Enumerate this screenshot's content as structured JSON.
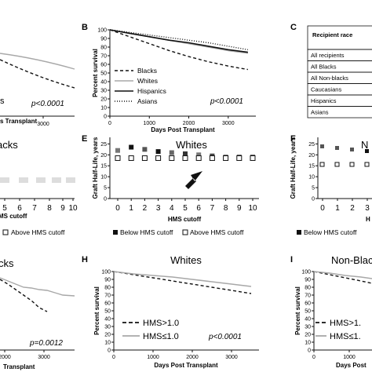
{
  "panels": {
    "A": {
      "ylabel": "",
      "xlabel": "",
      "xticks": [
        "",
        "3000"
      ],
      "pvalue": "p<0.0001",
      "xlabel_visible": "s Transplant",
      "legend_fragment": "s"
    },
    "B": {
      "label": "B",
      "ylabel": "Percent survival",
      "xlabel": "Days Post Transplant",
      "pvalue": "p<0.0001",
      "yticks": [
        "0",
        "10",
        "20",
        "30",
        "40",
        "50",
        "60",
        "70",
        "80",
        "90",
        "100"
      ],
      "xticks": [
        "0",
        "1000",
        "2000",
        "3000"
      ]
    },
    "C": {
      "label": "C",
      "table_header": "Recipient race",
      "rows": [
        "All recipients",
        "All Blacks",
        "All Non-blacks",
        "Caucasians",
        "Hispanics",
        "Asians"
      ]
    },
    "D": {
      "title_fragment": "acks",
      "xticks": [
        "5",
        "6",
        "7",
        "8",
        "9",
        "10"
      ],
      "xlabel_fragment": "MS cutoff",
      "legend_fragment": "Above HMS cutoff"
    },
    "E": {
      "label": "E",
      "title": "Whites",
      "ylabel": "Graft Half-Life, years",
      "xlabel": "HMS cutoff",
      "yticks": [
        "0",
        "5",
        "10",
        "15",
        "20",
        "25"
      ],
      "xticks": [
        "0",
        "1",
        "2",
        "3",
        "4",
        "5",
        "6",
        "7",
        "8",
        "9",
        "10"
      ]
    },
    "F": {
      "label": "F",
      "title_fragment": "N",
      "ylabel": "Graft Half-Life, years",
      "yticks": [
        "0",
        "5",
        "10",
        "15",
        "20",
        "25"
      ],
      "xticks": [
        "0",
        "1",
        "2",
        "3"
      ],
      "xlabel_fragment": "H"
    },
    "G": {
      "title_fragment": "cks",
      "pvalue": "p=0.0012",
      "xticks": [
        "2000",
        "3000"
      ],
      "xlabel_fragment": "Transplant"
    },
    "H": {
      "label": "H",
      "title": "Whites",
      "ylabel": "Percent survival",
      "xlabel": "Days Post Transplant",
      "pvalue": "p<0.0001",
      "yticks": [
        "0",
        "10",
        "20",
        "30",
        "40",
        "50",
        "60",
        "70",
        "80",
        "90",
        "100"
      ],
      "xticks": [
        "0",
        "1000",
        "2000",
        "3000"
      ]
    },
    "I": {
      "label": "I",
      "title_fragment": "Non-Blac",
      "ylabel": "Percent survival",
      "xlabel_fragment": "Days Post",
      "yticks": [
        "0",
        "10",
        "20",
        "30",
        "40",
        "50",
        "60",
        "70",
        "80",
        "90",
        "100"
      ],
      "xticks": [
        "0",
        "1000"
      ]
    }
  },
  "legend_hms": {
    "below": "Below HMS cutoff",
    "above": "Above HMS cutoff",
    "below_short": "Below HMS cutoff"
  },
  "legend_survival": {
    "gt": "HMS>1.0",
    "le": "HMS≤1.0",
    "gt_short": "HMS>1.",
    "le_short": "HMS≤1."
  },
  "colors": {
    "black": "#111111",
    "gray": "#a8a8a8",
    "darkgray": "#555555"
  },
  "chart_data": [
    {
      "panel": "B",
      "type": "line",
      "xlabel": "Days Post Transplant",
      "ylabel": "Percent survival",
      "xlim": [
        0,
        3700
      ],
      "ylim": [
        0,
        100
      ],
      "series": [
        {
          "name": "Blacks",
          "style": "dashed",
          "x": [
            0,
            500,
            1000,
            1500,
            2000,
            2500,
            3000,
            3500
          ],
          "y": [
            100,
            92,
            84,
            76,
            69,
            63,
            58,
            54
          ]
        },
        {
          "name": "Whites",
          "style": "gray",
          "x": [
            0,
            500,
            1000,
            1500,
            2000,
            2500,
            3000,
            3500
          ],
          "y": [
            100,
            96,
            92,
            88,
            84,
            80,
            76,
            73
          ]
        },
        {
          "name": "Hispanics",
          "style": "solid",
          "x": [
            0,
            500,
            1000,
            1500,
            2000,
            2500,
            3000,
            3500
          ],
          "y": [
            100,
            96,
            92,
            88,
            85,
            81,
            77,
            74
          ]
        },
        {
          "name": "Asians",
          "style": "dotted",
          "x": [
            0,
            500,
            1000,
            1500,
            2000,
            2500,
            3000,
            3500
          ],
          "y": [
            100,
            97,
            94,
            91,
            88,
            85,
            81,
            77
          ]
        }
      ],
      "legend": "bottom-left"
    },
    {
      "panel": "E",
      "type": "scatter",
      "title": "Whites",
      "xlabel": "HMS cutoff",
      "ylabel": "Graft Half-Life, years",
      "xlim": [
        -0.5,
        10.5
      ],
      "ylim": [
        0,
        28
      ],
      "series": [
        {
          "name": "Below HMS cutoff",
          "x": [
            0,
            1,
            2,
            3,
            4,
            5,
            6,
            7,
            8,
            9,
            10
          ],
          "y": [
            22,
            23.5,
            22.5,
            21.5,
            21,
            20.5,
            20,
            19.5,
            19,
            19,
            19
          ]
        },
        {
          "name": "Above HMS cutoff",
          "x": [
            0,
            1,
            2,
            3,
            4,
            5,
            6,
            7,
            8,
            9,
            10
          ],
          "y": [
            18.5,
            18.5,
            18.5,
            18.5,
            18.5,
            18.5,
            18.5,
            18.5,
            18.5,
            18.5,
            18.5
          ]
        }
      ],
      "annotation": "arrow at HMS cutoff 5"
    },
    {
      "panel": "H",
      "type": "line",
      "title": "Whites",
      "xlabel": "Days Post Transplant",
      "ylabel": "Percent survival",
      "xlim": [
        0,
        3700
      ],
      "ylim": [
        0,
        100
      ],
      "series": [
        {
          "name": "HMS>1.0",
          "style": "dashed",
          "x": [
            0,
            500,
            1000,
            1500,
            2000,
            2500,
            3000,
            3500
          ],
          "y": [
            100,
            96,
            92,
            88,
            84,
            80,
            76,
            72
          ]
        },
        {
          "name": "HMS≤1.0",
          "style": "gray",
          "x": [
            0,
            500,
            1000,
            1500,
            2000,
            2500,
            3000,
            3500
          ],
          "y": [
            100,
            97,
            95,
            93,
            90,
            87,
            84,
            81
          ]
        }
      ],
      "legend": "bottom-left"
    }
  ]
}
